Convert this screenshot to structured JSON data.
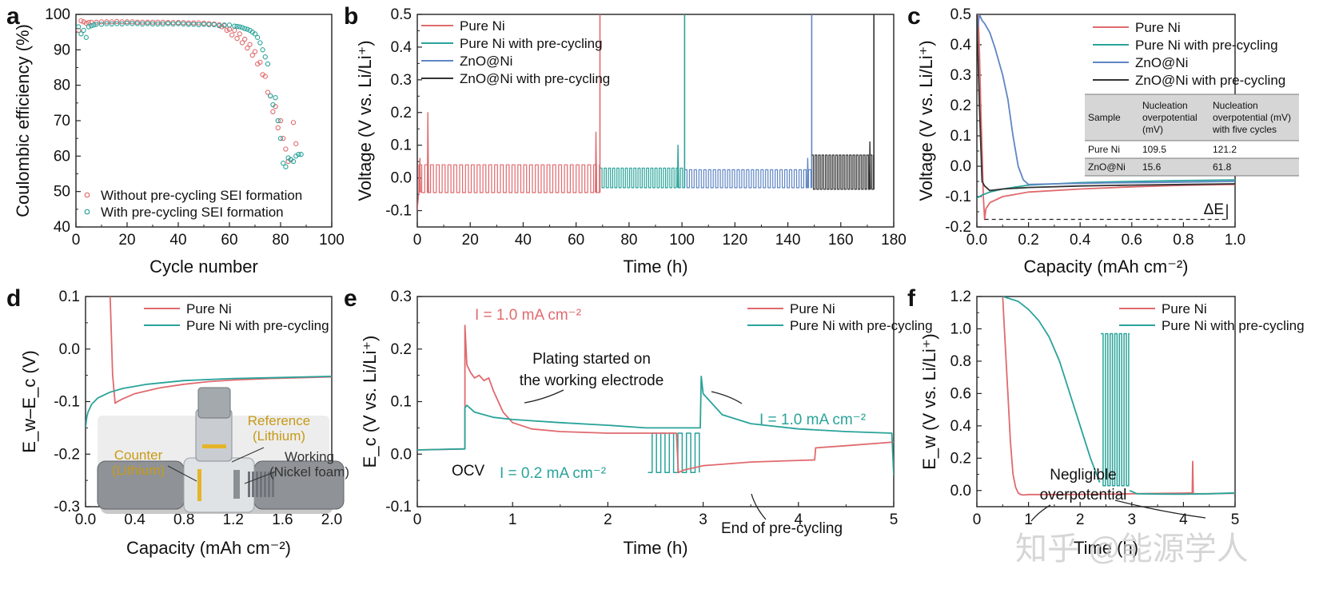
{
  "colors": {
    "red": "#e06a6e",
    "teal": "#2aa39a",
    "blue": "#5f86c4",
    "black": "#333333"
  },
  "watermark": "知乎 @能源学人",
  "chart_data": [
    {
      "panel": "a",
      "type": "scatter",
      "xlabel": "Cycle number",
      "ylabel": "Coulombic efficiency (%)",
      "xlim": [
        0,
        100
      ],
      "ylim": [
        40,
        100
      ],
      "xticks": [
        0,
        20,
        40,
        60,
        80,
        100
      ],
      "yticks": [
        40,
        50,
        60,
        70,
        80,
        90,
        100
      ],
      "legend_position": "bottom-left",
      "series": [
        {
          "name": "Without pre-cycling SEI formation",
          "color": "red",
          "x": [
            1,
            2,
            3,
            4,
            5,
            6,
            8,
            10,
            12,
            14,
            16,
            18,
            20,
            22,
            24,
            26,
            28,
            30,
            32,
            34,
            36,
            38,
            40,
            42,
            44,
            46,
            48,
            50,
            52,
            54,
            56,
            57,
            58,
            59,
            60,
            61,
            62,
            63,
            64,
            65,
            66,
            67,
            68,
            69,
            70,
            71,
            72,
            73,
            74,
            75,
            76,
            77,
            78,
            79,
            80,
            81,
            82,
            83,
            84,
            85,
            86
          ],
          "y": [
            95.5,
            98.2,
            97.9,
            97.5,
            97.7,
            97.8,
            97.8,
            97.9,
            97.9,
            97.9,
            98.0,
            97.9,
            97.9,
            97.9,
            97.8,
            97.8,
            97.8,
            97.8,
            97.8,
            97.8,
            97.7,
            97.7,
            97.7,
            97.7,
            97.6,
            97.6,
            97.6,
            97.5,
            97.4,
            97.3,
            97.1,
            96.5,
            96.8,
            95.5,
            95.8,
            94.2,
            95.5,
            93.2,
            94.5,
            92.0,
            93.0,
            90.5,
            91.5,
            88.5,
            89.5,
            86.0,
            86.5,
            83.0,
            82.5,
            78.0,
            77.0,
            72.5,
            74.0,
            68.0,
            70.0,
            65.0,
            62.0,
            58.5,
            59.0,
            69.5,
            63.5
          ]
        },
        {
          "name": "With pre-cycling SEI formation",
          "color": "teal",
          "x": [
            1,
            2,
            3,
            4,
            5,
            6,
            7,
            8,
            10,
            12,
            14,
            16,
            18,
            20,
            22,
            24,
            26,
            28,
            30,
            32,
            34,
            36,
            38,
            40,
            42,
            44,
            46,
            48,
            50,
            52,
            54,
            56,
            58,
            60,
            62,
            63,
            64,
            65,
            66,
            67,
            68,
            69,
            70,
            71,
            72,
            73,
            74,
            75,
            76,
            77,
            78,
            79,
            80,
            81,
            82,
            83,
            84,
            85,
            86,
            87,
            88
          ],
          "y": [
            96.5,
            94.5,
            95.5,
            93.5,
            96.5,
            96.8,
            97.0,
            97.2,
            97.2,
            97.4,
            97.3,
            97.4,
            97.3,
            97.5,
            97.4,
            97.4,
            97.3,
            97.4,
            97.3,
            97.3,
            97.3,
            97.4,
            97.3,
            97.4,
            97.3,
            97.2,
            97.2,
            97.1,
            97.2,
            97.1,
            97.1,
            96.8,
            97.0,
            97.0,
            96.7,
            96.6,
            96.5,
            96.3,
            96.0,
            95.8,
            95.5,
            95.0,
            94.5,
            93.5,
            92.0,
            90.0,
            88.0,
            86.0,
            77.0,
            74.5,
            76.5,
            70.0,
            65.0,
            58.0,
            57.0,
            59.5,
            59.0,
            58.5,
            60.0,
            60.5,
            60.5
          ]
        }
      ]
    },
    {
      "panel": "b",
      "type": "line",
      "xlabel": "Time (h)",
      "ylabel": "Voltage (V vs. Li/Li⁺)",
      "xlim": [
        0,
        180
      ],
      "ylim": [
        -0.15,
        0.5
      ],
      "xticks": [
        0,
        20,
        40,
        60,
        80,
        100,
        120,
        140,
        160,
        180
      ],
      "yticks": [
        -0.1,
        0.0,
        0.1,
        0.2,
        0.3,
        0.4,
        0.5
      ],
      "legend_position": "top-left",
      "series": [
        {
          "name": "Pure Ni",
          "color": "red",
          "x_start": 0,
          "x_end": 69,
          "period": 2.2,
          "high": 0.04,
          "low": -0.045,
          "short_at": 69,
          "spikes": [
            [
              1.0,
              0.06
            ],
            [
              4.0,
              0.2
            ],
            [
              67.5,
              0.14
            ]
          ]
        },
        {
          "name": "Pure Ni with pre-cycling",
          "color": "teal",
          "x_start": 69,
          "x_end": 101,
          "period": 1.6,
          "high": 0.03,
          "low": -0.03,
          "short_at": 101,
          "spikes": [
            [
              98.5,
              0.1
            ]
          ]
        },
        {
          "name": "ZnO@Ni",
          "color": "blue",
          "x_start": 101,
          "x_end": 149,
          "period": 1.8,
          "high": 0.025,
          "low": -0.03,
          "short_at": 149,
          "spikes": [
            [
              147.5,
              0.06
            ]
          ]
        },
        {
          "name": "ZnO@Ni with pre-cycling",
          "color": "black",
          "x_start": 149,
          "x_end": 173,
          "period": 1.3,
          "high": 0.07,
          "low": -0.035,
          "short_at": 172.5,
          "spikes": [
            [
              171.0,
              0.11
            ]
          ]
        }
      ]
    },
    {
      "panel": "c",
      "type": "line",
      "xlabel": "Capacity (mAh cm⁻²)",
      "ylabel": "Voltage (V vs. Li/Li⁺)",
      "xlim": [
        0,
        1.0
      ],
      "ylim": [
        -0.2,
        0.5
      ],
      "xticks": [
        0.0,
        0.2,
        0.4,
        0.6,
        0.8,
        1.0
      ],
      "yticks": [
        -0.2,
        -0.1,
        0.0,
        0.1,
        0.2,
        0.3,
        0.4,
        0.5
      ],
      "legend_position": "top-right",
      "annotation": "ΔE",
      "series": [
        {
          "name": "Pure Ni",
          "color": "red",
          "x": [
            0.0,
            0.005,
            0.01,
            0.015,
            0.02,
            0.025,
            0.03,
            0.035,
            0.05,
            0.1,
            0.2,
            0.4,
            0.6,
            0.8,
            1.0
          ],
          "y": [
            0.5,
            0.5,
            0.38,
            0.2,
            0.05,
            -0.1,
            -0.175,
            -0.14,
            -0.12,
            -0.1,
            -0.085,
            -0.075,
            -0.068,
            -0.063,
            -0.06
          ]
        },
        {
          "name": "Pure Ni with pre-cycling",
          "color": "teal",
          "x": [
            0.0,
            0.02,
            0.05,
            0.1,
            0.2,
            0.4,
            0.6,
            0.8,
            1.0
          ],
          "y": [
            -0.105,
            -0.095,
            -0.085,
            -0.075,
            -0.062,
            -0.054,
            -0.05,
            -0.047,
            -0.045
          ]
        },
        {
          "name": "ZnO@Ni",
          "color": "blue",
          "x": [
            0.0,
            0.01,
            0.02,
            0.03,
            0.05,
            0.07,
            0.1,
            0.12,
            0.14,
            0.16,
            0.18,
            0.2,
            0.3,
            0.5,
            0.8,
            1.0
          ],
          "y": [
            0.43,
            0.5,
            0.48,
            0.47,
            0.44,
            0.39,
            0.3,
            0.22,
            0.1,
            0.0,
            -0.045,
            -0.06,
            -0.058,
            -0.055,
            -0.052,
            -0.05
          ]
        },
        {
          "name": "ZnO@Ni with pre-cycling",
          "color": "black",
          "x": [
            0.0,
            0.01,
            0.02,
            0.03,
            0.05,
            0.1,
            0.2,
            0.4,
            0.6,
            0.8,
            1.0
          ],
          "y": [
            0.5,
            0.2,
            -0.05,
            -0.065,
            -0.08,
            -0.075,
            -0.07,
            -0.065,
            -0.062,
            -0.06,
            -0.058
          ]
        }
      ],
      "table": {
        "headers": [
          "Sample",
          "Nucleation overpotential (mV)",
          "Nucleation overpotential (mV) with five cycles"
        ],
        "header_lines": [
          [
            "Sample"
          ],
          [
            "Nucleation",
            "overpotential",
            "(mV)"
          ],
          [
            "Nucleation",
            "overpotential (mV)",
            "with five cycles"
          ]
        ],
        "rows": [
          [
            "Pure Ni",
            "109.5",
            "121.2"
          ],
          [
            "ZnO@Ni",
            "15.6",
            "61.8"
          ]
        ]
      }
    },
    {
      "panel": "d",
      "type": "line",
      "xlabel": "Capacity (mAh cm⁻²)",
      "ylabel": "E_w–E_c (V)",
      "xlim": [
        0,
        2.0
      ],
      "ylim": [
        -0.3,
        0.1
      ],
      "xticks": [
        0.0,
        0.4,
        0.8,
        1.2,
        1.6,
        2.0
      ],
      "yticks": [
        -0.3,
        -0.2,
        -0.1,
        0.0,
        0.1
      ],
      "legend_position": "top-right",
      "inset_labels": [
        "Reference",
        "(Lithium)",
        "Counter",
        "(Lithium)",
        "Working",
        "(Nickel foam)"
      ],
      "series": [
        {
          "name": "Pure Ni",
          "color": "red",
          "x": [
            0.2,
            0.22,
            0.24,
            0.26,
            0.3,
            0.4,
            0.6,
            0.8,
            1.0,
            1.2,
            1.5,
            2.0
          ],
          "y": [
            0.1,
            -0.05,
            -0.103,
            -0.1,
            -0.095,
            -0.085,
            -0.074,
            -0.067,
            -0.062,
            -0.059,
            -0.056,
            -0.053
          ]
        },
        {
          "name": "Pure Ni with pre-cycling",
          "color": "teal",
          "x": [
            0.0,
            0.01,
            0.02,
            0.05,
            0.1,
            0.2,
            0.3,
            0.5,
            0.8,
            1.2,
            1.6,
            2.0
          ],
          "y": [
            -0.15,
            -0.13,
            -0.12,
            -0.105,
            -0.093,
            -0.082,
            -0.075,
            -0.067,
            -0.06,
            -0.056,
            -0.054,
            -0.052
          ]
        }
      ]
    },
    {
      "panel": "e",
      "type": "line",
      "xlabel": "Time (h)",
      "ylabel": "E_c (V vs. Li/Li⁺)",
      "xlim": [
        0,
        5
      ],
      "ylim": [
        -0.1,
        0.3
      ],
      "xticks": [
        0,
        1,
        2,
        3,
        4,
        5
      ],
      "yticks": [
        -0.1,
        0.0,
        0.1,
        0.2,
        0.3
      ],
      "legend_position": "top-right",
      "annotations": [
        "I = 1.0 mA cm⁻²",
        "Plating started on",
        "the working electrode",
        "I = 1.0 mA cm⁻²",
        "OCV",
        "I = 0.2 mA cm⁻²",
        "End of pre-cycling"
      ],
      "series": [
        {
          "name": "Pure Ni",
          "color": "red",
          "x": [
            0.0,
            0.5,
            0.5,
            0.52,
            0.56,
            0.6,
            0.65,
            0.7,
            0.75,
            0.8,
            0.9,
            1.0,
            1.2,
            1.5,
            2.0,
            2.5,
            2.72,
            2.74,
            2.8,
            3.0,
            3.5,
            4.0,
            4.17,
            4.18,
            4.5,
            5.0
          ],
          "y": [
            0.008,
            0.01,
            0.245,
            0.17,
            0.155,
            0.145,
            0.15,
            0.14,
            0.145,
            0.12,
            0.08,
            0.06,
            0.048,
            0.043,
            0.04,
            0.04,
            0.04,
            -0.035,
            -0.03,
            -0.022,
            -0.015,
            -0.012,
            -0.011,
            0.012,
            0.016,
            0.023
          ]
        },
        {
          "name": "Pure Ni with pre-cycling",
          "color": "teal",
          "x": [
            0.0,
            0.5,
            0.5,
            0.52,
            0.6,
            0.8,
            1.0,
            1.5,
            2.0,
            2.4,
            2.42,
            2.88,
            2.97,
            2.98,
            3.0,
            3.2,
            3.5,
            4.0,
            4.5,
            4.98,
            5.0
          ],
          "y": [
            0.008,
            0.01,
            0.088,
            0.093,
            0.08,
            0.07,
            0.066,
            0.06,
            0.055,
            0.05,
            0.05,
            0.05,
            0.05,
            0.148,
            0.115,
            0.075,
            0.058,
            0.048,
            0.043,
            0.04,
            -0.04
          ]
        }
      ],
      "square_wave": {
        "x_start": 2.42,
        "x_end": 2.96,
        "period": 0.09,
        "high": 0.04,
        "low": -0.035
      }
    },
    {
      "panel": "f",
      "type": "line",
      "xlabel": "Time (h)",
      "ylabel": "E_w (V vs. Li/Li⁺)",
      "xlim": [
        0,
        5
      ],
      "ylim": [
        -0.1,
        1.2
      ],
      "xticks": [
        0,
        1,
        2,
        3,
        4,
        5
      ],
      "yticks": [
        0.0,
        0.2,
        0.4,
        0.6,
        0.8,
        1.0,
        1.2
      ],
      "legend_position": "top-right",
      "annotations": [
        "Negligible",
        "overpotential"
      ],
      "series": [
        {
          "name": "Pure Ni",
          "color": "red",
          "x": [
            0.5,
            0.55,
            0.6,
            0.65,
            0.7,
            0.75,
            0.8,
            0.85,
            0.9,
            1.0,
            1.5,
            2.0,
            2.5,
            3.0,
            3.5,
            4.0,
            4.17,
            4.18,
            4.19,
            4.2,
            4.5,
            5.0
          ],
          "y": [
            1.2,
            0.9,
            0.6,
            0.3,
            0.1,
            0.02,
            -0.015,
            -0.025,
            -0.028,
            -0.025,
            -0.025,
            -0.024,
            -0.023,
            -0.02,
            -0.018,
            -0.016,
            -0.015,
            0.18,
            -0.02,
            -0.02,
            -0.02,
            -0.017
          ]
        },
        {
          "name": "Pure Ni with pre-cycling",
          "color": "teal",
          "x": [
            0.5,
            0.6,
            0.8,
            1.0,
            1.2,
            1.4,
            1.6,
            1.8,
            2.0,
            2.2,
            2.38
          ],
          "y": [
            1.2,
            1.19,
            1.17,
            1.12,
            1.05,
            0.95,
            0.8,
            0.6,
            0.4,
            0.2,
            0.05
          ]
        }
      ],
      "square_wave": {
        "x_start": 2.4,
        "x_end": 2.96,
        "period": 0.09,
        "high": 0.97,
        "low": 0.03
      },
      "tail": {
        "x": [
          2.96,
          3.1,
          3.5,
          4.0,
          4.5,
          5.0
        ],
        "y": [
          0.0,
          -0.02,
          -0.022,
          -0.023,
          -0.02,
          -0.015
        ]
      }
    }
  ]
}
